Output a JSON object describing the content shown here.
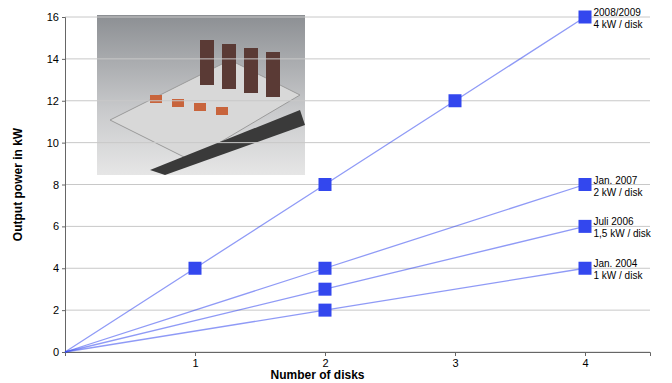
{
  "chart_data": {
    "type": "line",
    "x_label": "Number of disks",
    "y_label": "Output power in kW",
    "xlim": [
      0,
      4.5
    ],
    "xticks": [
      1,
      2,
      3,
      4
    ],
    "ylim": [
      0,
      16
    ],
    "yticks": [
      0,
      2,
      4,
      6,
      8,
      10,
      12,
      14,
      16
    ],
    "grid": true,
    "marker": "square",
    "series": [
      {
        "name": "2008/2009",
        "annotation": "4 kW / disk",
        "color": "#3347ee",
        "x": [
          0,
          1,
          2,
          3,
          4
        ],
        "values": [
          0,
          4,
          8,
          12,
          16
        ]
      },
      {
        "name": "Jan. 2007",
        "annotation": "2 kW / disk",
        "color": "#3347ee",
        "x": [
          0,
          2,
          4
        ],
        "values": [
          0,
          4,
          8
        ]
      },
      {
        "name": "Juli 2006",
        "annotation": "1,5 kW / disk",
        "color": "#3347ee",
        "x": [
          0,
          2,
          4
        ],
        "values": [
          0,
          3,
          6
        ]
      },
      {
        "name": "Jan. 2004",
        "annotation": "1 kW / disk",
        "color": "#3347ee",
        "x": [
          0,
          2,
          4
        ],
        "values": [
          0,
          2,
          4
        ]
      }
    ]
  }
}
